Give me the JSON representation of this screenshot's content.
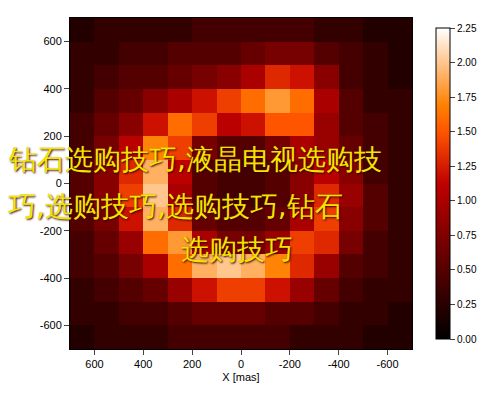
{
  "chart_data": {
    "type": "heatmap",
    "x_label": "X [mas]",
    "x": [
      650,
      550,
      450,
      350,
      250,
      150,
      50,
      -50,
      -150,
      -250,
      -350,
      -450,
      -550,
      -650
    ],
    "y": [
      -650,
      -550,
      -450,
      -350,
      -250,
      -150,
      -50,
      50,
      150,
      250,
      350,
      450,
      550,
      650
    ],
    "z": [
      [
        0.2,
        0.3,
        0.3,
        0.3,
        0.4,
        0.4,
        0.4,
        0.4,
        0.4,
        0.3,
        0.3,
        0.3,
        0.2,
        0.2
      ],
      [
        0.3,
        0.3,
        0.4,
        0.4,
        0.5,
        0.6,
        0.6,
        0.6,
        0.5,
        0.5,
        0.4,
        0.3,
        0.3,
        0.2
      ],
      [
        0.3,
        0.4,
        0.5,
        0.6,
        0.9,
        1.2,
        1.4,
        1.4,
        1.2,
        0.9,
        0.6,
        0.4,
        0.3,
        0.3
      ],
      [
        0.4,
        0.5,
        0.7,
        1.0,
        1.6,
        1.9,
        2.0,
        1.9,
        1.7,
        1.3,
        0.9,
        0.5,
        0.4,
        0.3
      ],
      [
        0.4,
        0.6,
        0.9,
        1.6,
        1.8,
        1.0,
        0.7,
        0.7,
        0.9,
        1.4,
        1.3,
        0.7,
        0.4,
        0.3
      ],
      [
        0.5,
        0.7,
        1.2,
        1.9,
        1.3,
        0.6,
        0.5,
        0.5,
        0.6,
        1.0,
        1.4,
        0.8,
        0.5,
        0.3
      ],
      [
        0.5,
        0.8,
        1.4,
        2.0,
        1.0,
        0.5,
        0.4,
        0.4,
        0.5,
        0.8,
        1.3,
        0.9,
        0.5,
        0.3
      ],
      [
        0.5,
        0.8,
        1.3,
        1.9,
        1.1,
        0.5,
        0.4,
        0.4,
        0.5,
        0.8,
        1.1,
        0.8,
        0.4,
        0.3
      ],
      [
        0.4,
        0.7,
        1.1,
        1.7,
        1.4,
        0.7,
        0.5,
        0.5,
        0.7,
        1.0,
        0.9,
        0.6,
        0.4,
        0.3
      ],
      [
        0.4,
        0.6,
        0.8,
        1.2,
        1.6,
        1.4,
        1.1,
        1.2,
        1.5,
        1.5,
        0.9,
        0.5,
        0.4,
        0.3
      ],
      [
        0.3,
        0.5,
        0.6,
        0.8,
        1.0,
        1.2,
        1.4,
        1.6,
        1.8,
        1.6,
        1.0,
        0.5,
        0.3,
        0.3
      ],
      [
        0.3,
        0.4,
        0.5,
        0.5,
        0.6,
        0.7,
        0.8,
        1.0,
        1.3,
        1.2,
        0.8,
        0.4,
        0.3,
        0.2
      ],
      [
        0.3,
        0.3,
        0.4,
        0.4,
        0.5,
        0.5,
        0.5,
        0.6,
        0.7,
        0.7,
        0.5,
        0.4,
        0.3,
        0.2
      ],
      [
        0.2,
        0.3,
        0.3,
        0.3,
        0.3,
        0.4,
        0.4,
        0.4,
        0.4,
        0.4,
        0.3,
        0.3,
        0.2,
        0.2
      ]
    ],
    "xlim": [
      700,
      -700
    ],
    "ylim": [
      -700,
      700
    ],
    "xticks": [
      600,
      400,
      200,
      0,
      -200,
      -400,
      -600
    ],
    "yticks": [
      -600,
      -400,
      -200,
      0,
      200,
      400,
      600
    ],
    "colorbar_range": [
      0,
      2.25
    ],
    "colorbar_ticks": [
      {
        "value": 0,
        "label": "0.00"
      },
      {
        "value": 0.25,
        "label": "0.25"
      },
      {
        "value": 0.5,
        "label": "0.50"
      },
      {
        "value": 0.75,
        "label": "0.75"
      },
      {
        "value": 1,
        "label": "1.00"
      },
      {
        "value": 1.25,
        "label": "1.25"
      },
      {
        "value": 1.5,
        "label": "1.50"
      },
      {
        "value": 1.75,
        "label": "1.75"
      },
      {
        "value": 2,
        "label": "2.00"
      },
      {
        "value": 2.25,
        "label": "2.25"
      }
    ],
    "annotations": [
      "钻石选购技巧,液晶电视选购技",
      "巧,选购技巧,选购技巧,钻石",
      "选购技巧"
    ]
  }
}
